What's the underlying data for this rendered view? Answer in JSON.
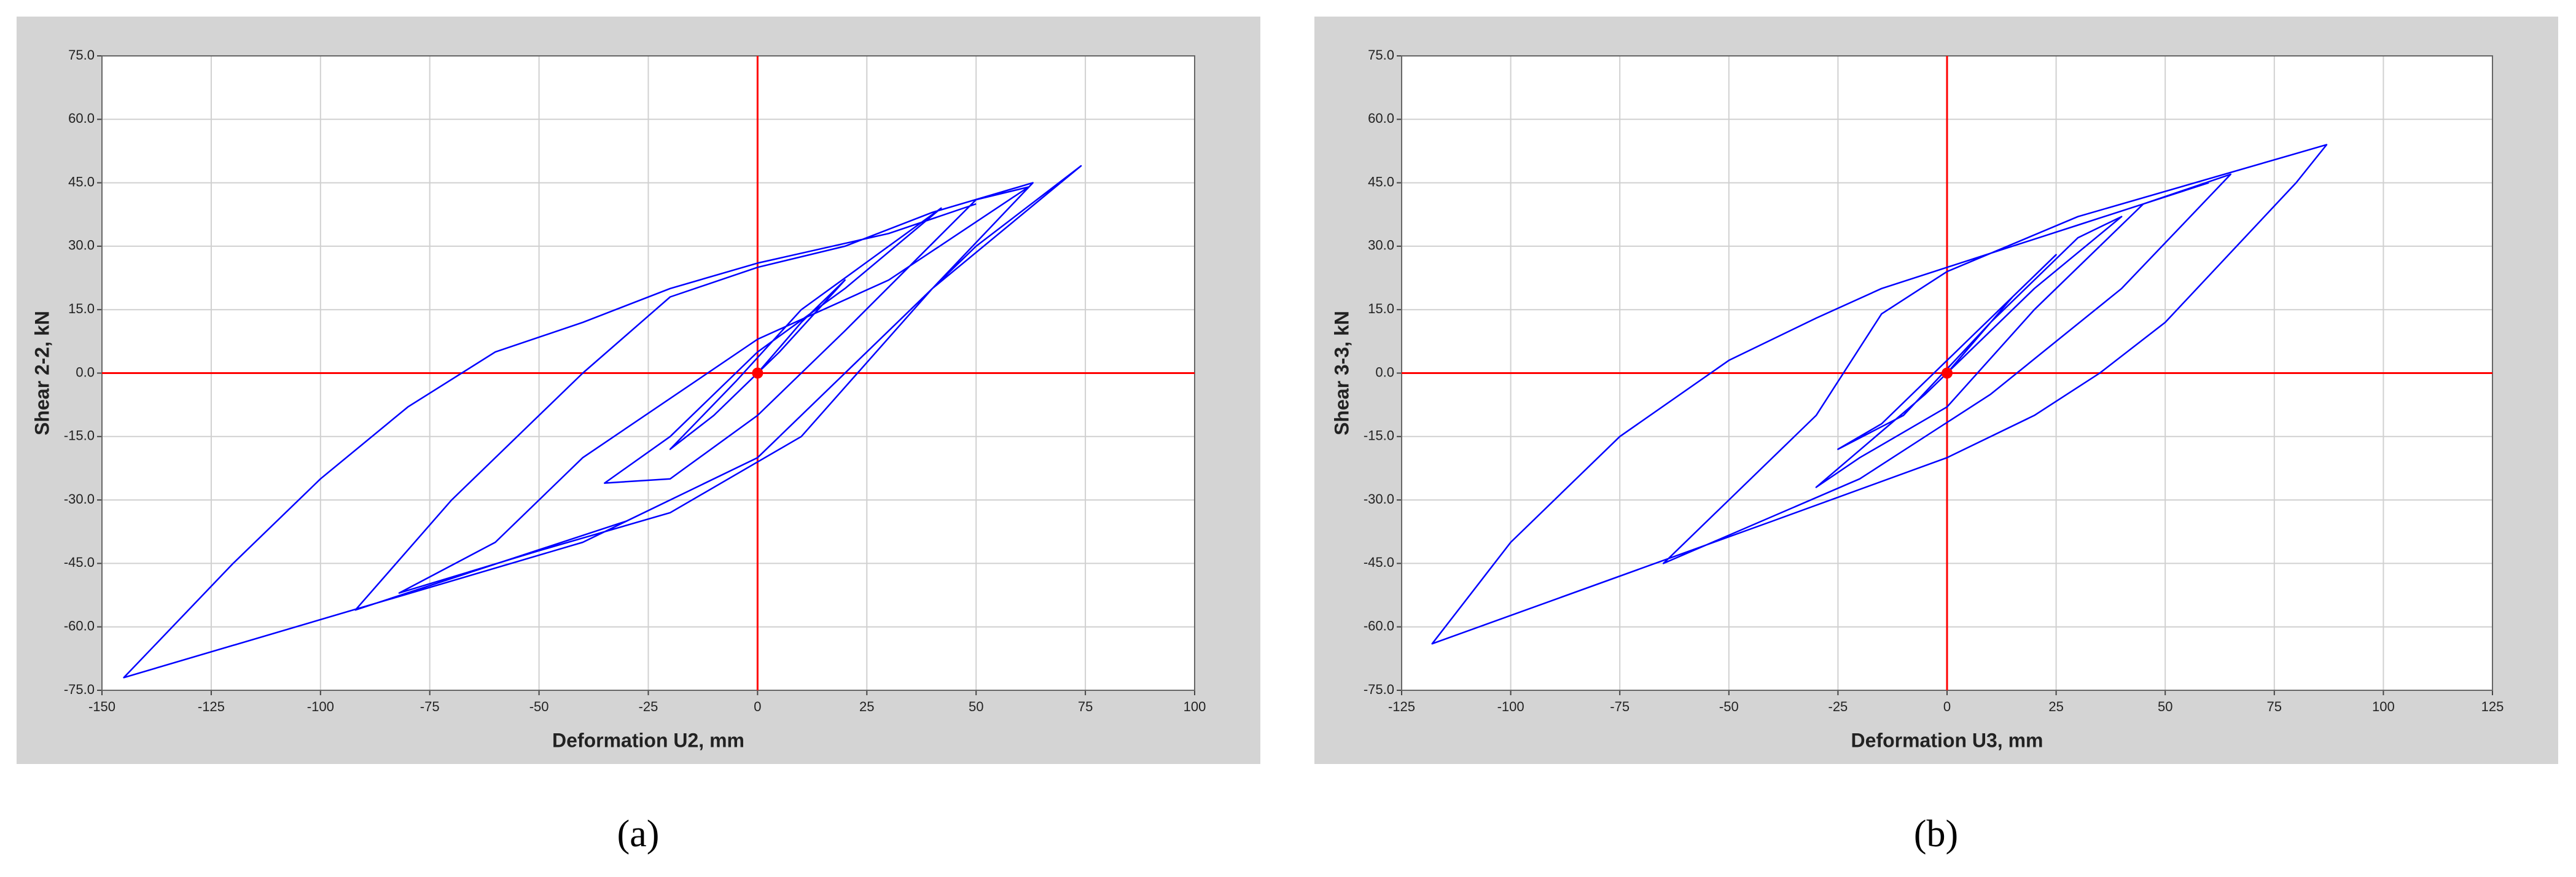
{
  "chart_data": [
    {
      "type": "line",
      "x_label": "Deformation U2, mm",
      "y_label": "Shear 2-2, kN",
      "caption": "(a)",
      "color": "#0000ff",
      "axis_line_color": "#ff0000",
      "grid": true,
      "xlim": [
        -150,
        100
      ],
      "xticks": [
        -150,
        -125,
        -100,
        -75,
        -50,
        -25,
        0,
        25,
        50,
        75,
        100
      ],
      "ylim": [
        -75,
        75
      ],
      "yticks": [
        {
          "value": -75,
          "label": "-75.0"
        },
        {
          "value": -60,
          "label": "-60.0"
        },
        {
          "value": -45,
          "label": "-45.0"
        },
        {
          "value": -30,
          "label": "-30.0"
        },
        {
          "value": -15,
          "label": "-15.0"
        },
        {
          "value": 0,
          "label": "0.0"
        },
        {
          "value": 15,
          "label": "15.0"
        },
        {
          "value": 30,
          "label": "30.0"
        },
        {
          "value": 45,
          "label": "45.0"
        },
        {
          "value": 60,
          "label": "60.0"
        },
        {
          "value": 75,
          "label": "75.0"
        }
      ],
      "x": [
        0,
        10,
        20,
        5,
        -10,
        -20,
        -5,
        10,
        30,
        42,
        20,
        0,
        -20,
        -35,
        -20,
        0,
        20,
        50,
        62,
        30,
        0,
        -40,
        -60,
        -82,
        -50,
        -20,
        10,
        40,
        74,
        50,
        25,
        0,
        -30,
        -92,
        -70,
        -40,
        -20,
        0,
        20,
        40,
        63,
        40,
        20,
        0,
        -40,
        -145,
        -120,
        -100,
        -80,
        -60,
        -40,
        -20,
        0,
        30,
        50
      ],
      "values": [
        0,
        12,
        22,
        5,
        -10,
        -18,
        -2,
        15,
        30,
        39,
        20,
        5,
        -15,
        -26,
        -25,
        -10,
        10,
        41,
        44,
        22,
        8,
        -20,
        -40,
        -52,
        -42,
        -33,
        -15,
        20,
        49,
        30,
        5,
        -20,
        -35,
        -56,
        -30,
        0,
        18,
        25,
        30,
        38,
        45,
        20,
        0,
        -20,
        -40,
        -72,
        -45,
        -25,
        -8,
        5,
        12,
        20,
        26,
        33,
        40
      ]
    },
    {
      "type": "line",
      "x_label": "Deformation U3, mm",
      "y_label": "Shear 3-3, kN",
      "caption": "(b)",
      "color": "#0000ff",
      "axis_line_color": "#ff0000",
      "grid": true,
      "xlim": [
        -125,
        125
      ],
      "xticks": [
        -125,
        -100,
        -75,
        -50,
        -25,
        0,
        25,
        50,
        75,
        100,
        125
      ],
      "ylim": [
        -75,
        75
      ],
      "yticks": [
        {
          "value": -75,
          "label": "-75.0"
        },
        {
          "value": -60,
          "label": "-60.0"
        },
        {
          "value": -45,
          "label": "-45.0"
        },
        {
          "value": -30,
          "label": "-30.0"
        },
        {
          "value": -15,
          "label": "-15.0"
        },
        {
          "value": 0,
          "label": "0.0"
        },
        {
          "value": 15,
          "label": "15.0"
        },
        {
          "value": 30,
          "label": "30.0"
        },
        {
          "value": 45,
          "label": "45.0"
        },
        {
          "value": 60,
          "label": "60.0"
        },
        {
          "value": 75,
          "label": "75.0"
        }
      ],
      "x": [
        0,
        15,
        25,
        5,
        -15,
        -25,
        -10,
        10,
        30,
        40,
        20,
        -5,
        -30,
        -20,
        0,
        20,
        45,
        65,
        40,
        10,
        -20,
        -65,
        -50,
        -30,
        -15,
        0,
        30,
        87,
        80,
        50,
        35,
        20,
        0,
        -40,
        -118,
        -100,
        -75,
        -50,
        -30,
        -15,
        0,
        30,
        60
      ],
      "values": [
        0,
        18,
        28,
        8,
        -12,
        -18,
        -10,
        12,
        32,
        37,
        20,
        -5,
        -27,
        -20,
        -8,
        15,
        40,
        47,
        20,
        -5,
        -25,
        -45,
        -30,
        -10,
        14,
        24,
        37,
        54,
        45,
        12,
        0,
        -10,
        -20,
        -35,
        -64,
        -40,
        -15,
        3,
        13,
        20,
        25,
        35,
        45
      ]
    }
  ]
}
